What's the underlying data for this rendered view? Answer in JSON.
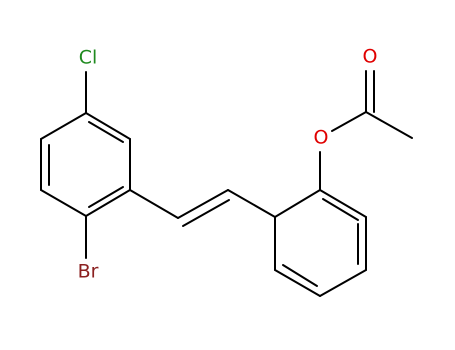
{
  "atoms": {
    "chlorine": "Cl",
    "bromine": "Br",
    "ester_oxygen": "O",
    "carbonyl_oxygen": "O"
  }
}
